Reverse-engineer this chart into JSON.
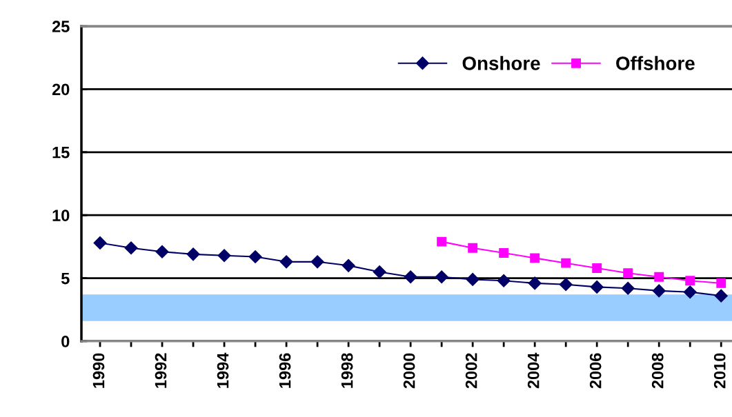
{
  "chart_data": {
    "type": "line",
    "categories": [
      "1990",
      null,
      "1992",
      null,
      "1994",
      null,
      "1996",
      null,
      "1998",
      null,
      "2000",
      null,
      "2002",
      null,
      "2004",
      null,
      "2006",
      null,
      "2008",
      null,
      "2010"
    ],
    "series": [
      {
        "name": "Onshore",
        "color": "#000066",
        "marker": "diamond",
        "values": [
          7.8,
          7.4,
          7.1,
          6.9,
          6.8,
          6.7,
          6.3,
          6.3,
          6.0,
          5.5,
          5.1,
          5.1,
          4.9,
          4.8,
          4.6,
          4.5,
          4.3,
          4.2,
          4.0,
          3.9,
          3.6
        ]
      },
      {
        "name": "Offshore",
        "color": "#ff00ff",
        "marker": "square",
        "values": [
          null,
          null,
          null,
          null,
          null,
          null,
          null,
          null,
          null,
          null,
          null,
          7.9,
          7.4,
          7.0,
          6.6,
          6.2,
          5.8,
          5.4,
          5.1,
          4.8,
          4.6
        ]
      }
    ],
    "ylim": [
      0,
      25
    ],
    "yticks": [
      0,
      5,
      10,
      15,
      20,
      25
    ],
    "bands": [
      {
        "axis": "y",
        "from": 1.6,
        "to": 3.7,
        "color": "#99ccff"
      }
    ],
    "grid": "y",
    "legend": "top right",
    "line_style": "solid"
  }
}
